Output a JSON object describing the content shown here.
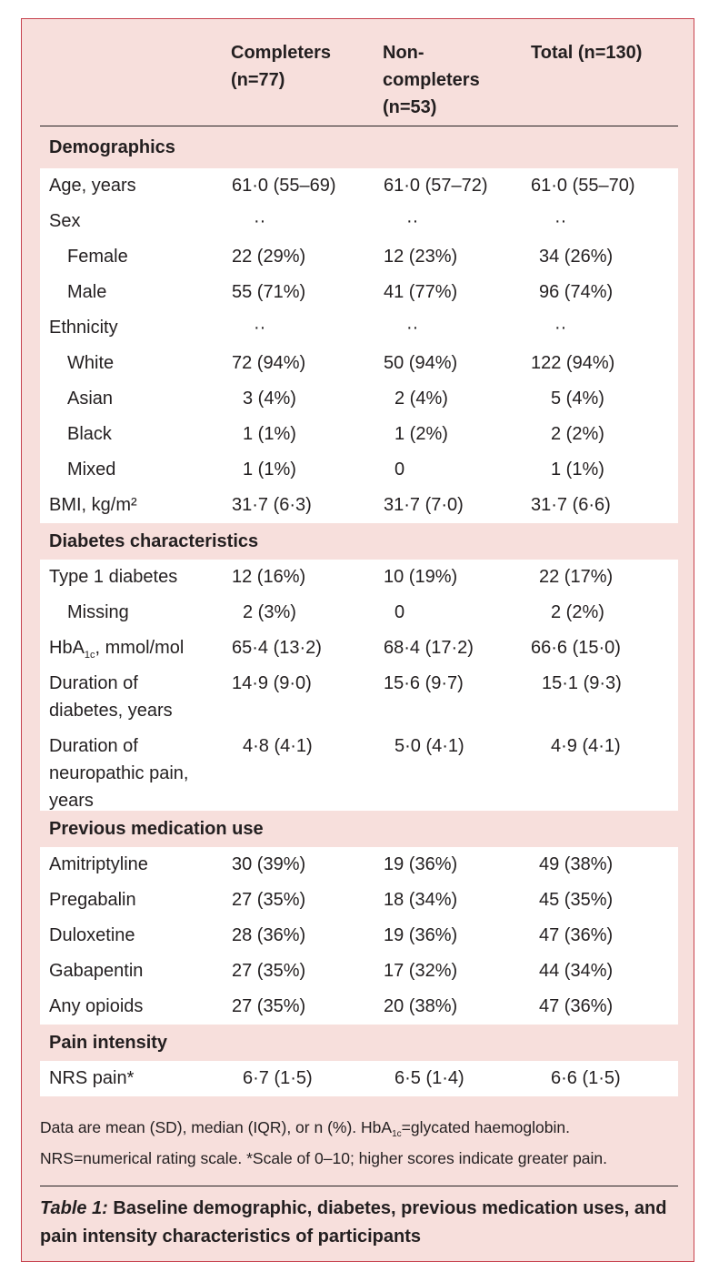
{
  "header": {
    "col1": "Completers\n(n=77)",
    "col2": "Non-\ncompleters\n(n=53)",
    "col3": "Total (n=130)"
  },
  "sections": {
    "demographics": "Demographics",
    "diabetes": "Diabetes characteristics",
    "medication": "Previous medication use",
    "pain": "Pain intensity"
  },
  "rows": {
    "age": {
      "label": "Age, years",
      "c1": "61·0 (55–69)",
      "c2": "61·0 (57–72)",
      "c3": "61·0 (55–70)"
    },
    "sex": {
      "label": "Sex",
      "c1": "··",
      "c2": "··",
      "c3": "··"
    },
    "female": {
      "label": "Female",
      "c1": "22 (29%)",
      "c2": "12 (23%)",
      "c3": "34 (26%)"
    },
    "male": {
      "label": "Male",
      "c1": "55 (71%)",
      "c2": "41 (77%)",
      "c3": "96 (74%)"
    },
    "ethnicity": {
      "label": "Ethnicity",
      "c1": "··",
      "c2": "··",
      "c3": "··"
    },
    "white": {
      "label": "White",
      "c1": "72 (94%)",
      "c2": "50 (94%)",
      "c3": "122 (94%)"
    },
    "asian": {
      "label": "Asian",
      "c1": "3 (4%)",
      "c2": "2 (4%)",
      "c3": "5 (4%)"
    },
    "black": {
      "label": "Black",
      "c1": "1 (1%)",
      "c2": "1 (2%)",
      "c3": "2 (2%)"
    },
    "mixed": {
      "label": "Mixed",
      "c1": "1 (1%)",
      "c2": "0",
      "c3": "1 (1%)"
    },
    "bmi": {
      "label": "BMI, kg/m²",
      "c1": "31·7 (6·3)",
      "c2": "31·7 (7·0)",
      "c3": "31·7 (6·6)"
    },
    "type1": {
      "label": "Type 1 diabetes",
      "c1": "12 (16%)",
      "c2": "10 (19%)",
      "c3": "22 (17%)"
    },
    "missing": {
      "label": "Missing",
      "c1": "2 (3%)",
      "c2": "0",
      "c3": "2 (2%)"
    },
    "hba1c": {
      "label_main": "HbA",
      "label_sub": "1c",
      "label_rest": ", mmol/mol",
      "c1": "65·4 (13·2)",
      "c2": "68·4 (17·2)",
      "c3": "66·6 (15·0)"
    },
    "duration_diabetes": {
      "label": "Duration of\ndiabetes, years",
      "c1": "14·9 (9·0)",
      "c2": "15·6 (9·7)",
      "c3": "15·1 (9·3)"
    },
    "duration_pain": {
      "label": "Duration of\nneuropathic pain,\nyears",
      "c1": "4·8 (4·1)",
      "c2": "5·0 (4·1)",
      "c3": "4·9 (4·1)"
    },
    "amitriptyline": {
      "label": "Amitriptyline",
      "c1": "30 (39%)",
      "c2": "19 (36%)",
      "c3": "49 (38%)"
    },
    "pregabalin": {
      "label": "Pregabalin",
      "c1": "27 (35%)",
      "c2": "18 (34%)",
      "c3": "45 (35%)"
    },
    "duloxetine": {
      "label": "Duloxetine",
      "c1": "28 (36%)",
      "c2": "19 (36%)",
      "c3": "47 (36%)"
    },
    "gabapentin": {
      "label": "Gabapentin",
      "c1": "27 (35%)",
      "c2": "17 (32%)",
      "c3": "44 (34%)"
    },
    "opioids": {
      "label": "Any opioids",
      "c1": "27 (35%)",
      "c2": "20 (38%)",
      "c3": "47 (36%)"
    },
    "nrs": {
      "label": "NRS pain*",
      "c1": "6·7 (1·5)",
      "c2": "6·5 (1·4)",
      "c3": "6·6 (1·5)"
    }
  },
  "footnote": {
    "part1": "Data are mean (SD), median (IQR), or n (%). HbA",
    "sub": "1c",
    "part2": "=glycated haemoglobin.\nNRS=numerical rating scale. *Scale of 0–10; higher scores indicate greater pain."
  },
  "caption": {
    "label": "Table 1:",
    "text": " Baseline demographic, diabetes, previous medication uses, and pain intensity characteristics of participants"
  },
  "colors": {
    "panel": "#f7dfdc",
    "border": "#c7424e",
    "cell": "#ffffff",
    "text": "#231f20"
  }
}
